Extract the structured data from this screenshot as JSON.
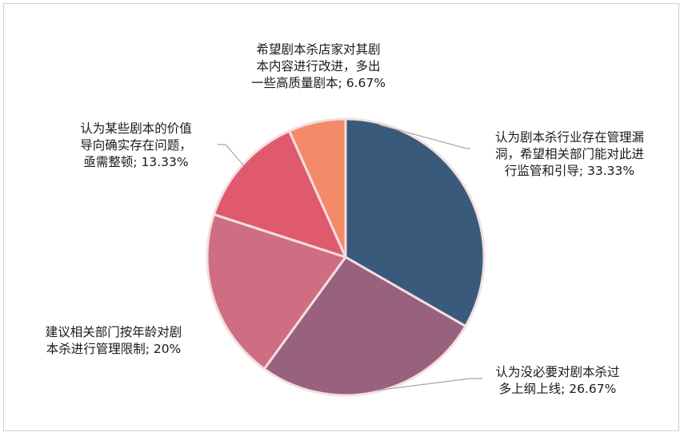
{
  "chart_data": {
    "type": "pie",
    "title": "",
    "slices": [
      {
        "lines": [
          "认为剧本杀行业存在管理漏",
          "洞，希望相关部门能对此进",
          "行监管和引导; 33.33%"
        ],
        "value": 33.33,
        "color": "#3a5a7c"
      },
      {
        "lines": [
          "认为没必要对剧本杀过",
          "多上纲上线; 26.67%"
        ],
        "value": 26.67,
        "color": "#98617e"
      },
      {
        "lines": [
          "建议相关部门按年龄对剧",
          "本杀进行管理限制; 20%"
        ],
        "value": 20,
        "color": "#cf6e83"
      },
      {
        "lines": [
          "认为某些剧本的价值",
          "导向确实存在问题，",
          "亟需整顿; 13.33%"
        ],
        "value": 13.33,
        "color": "#e05a6e"
      },
      {
        "lines": [
          "希望剧本杀店家对其剧",
          "本内容进行改进，多出",
          "一些高质量剧本; 6.67%"
        ],
        "value": 6.67,
        "color": "#f48a68"
      }
    ],
    "start_angle": "12 o'clock",
    "direction": "clockwise",
    "legend": "none",
    "data_labels": "outside with leader lines"
  }
}
